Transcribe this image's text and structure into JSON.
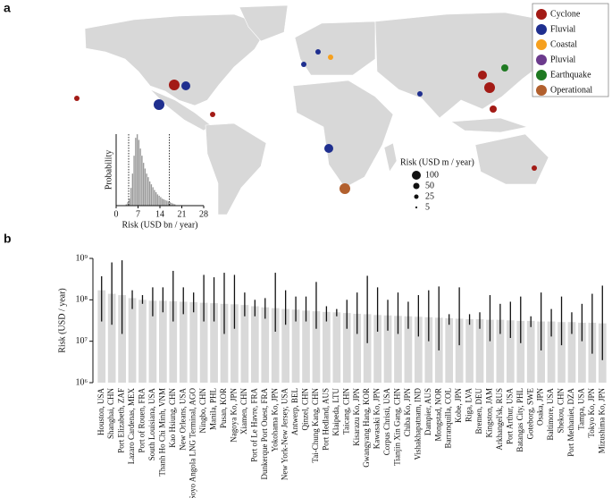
{
  "panels": {
    "a": "a",
    "b": "b"
  },
  "map": {
    "legend": [
      {
        "name": "Cyclone",
        "color": "#a31b16"
      },
      {
        "name": "Fluvial",
        "color": "#1f2f8f"
      },
      {
        "name": "Coastal",
        "color": "#f6a01e"
      },
      {
        "name": "Pluvial",
        "color": "#6b3a8c"
      },
      {
        "name": "Earthquake",
        "color": "#1f7a22"
      },
      {
        "name": "Operational",
        "color": "#b2602e"
      }
    ],
    "size_legend": {
      "title": "Risk (USD m / year)",
      "sizes": [
        100,
        50,
        25,
        5
      ]
    }
  },
  "chart_data": [
    {
      "type": "histogram",
      "xlabel": "Risk (USD bn / year)",
      "ylabel": "Probability",
      "bins": [
        3,
        3.5,
        4,
        4.5,
        5,
        5.5,
        6,
        6.5,
        7,
        7.5,
        8,
        8.5,
        9,
        9.5,
        10,
        10.5,
        11,
        11.5,
        12,
        12.5,
        13,
        13.5,
        14,
        14.5,
        15,
        15.5,
        16,
        16.5,
        17,
        17.5,
        18,
        18.5,
        19
      ],
      "values": [
        2,
        5,
        10,
        25,
        45,
        70,
        95,
        100,
        92,
        80,
        70,
        60,
        52,
        45,
        40,
        34,
        30,
        26,
        22,
        19,
        16,
        14,
        12,
        10,
        9,
        8,
        7,
        6,
        5,
        4,
        3,
        2
      ],
      "color": "#9a9a9a",
      "vlines": [
        4,
        17
      ],
      "xlim": [
        0,
        28
      ],
      "xticks": [
        0,
        7,
        14,
        21,
        28
      ],
      "ylim": [
        0,
        100
      ]
    },
    {
      "type": "bar",
      "ylabel": "Risk (USD / year)",
      "categories": [
        "Houston, USA",
        "Shanghai, CHN",
        "Port Elizabeth, ZAF",
        "Lazaro Cardenas, MEX",
        "Port of Rouen, FRA",
        "South Louisiana, USA",
        "Thanh Ho Chi Minh, VNM",
        "Kao Hsiung, CHN",
        "New Orleans, USA",
        "Soyo Angola LNG Terminal, AGO",
        "Ningbo, CHN",
        "Manila, PHL",
        "Pusan, KOR",
        "Nagoya Ko, JPN",
        "Xiamen, CHN",
        "Port of Le Havre, FRA",
        "Dunkerque Port Ouest, FRA",
        "Yokohama Ko, JPN",
        "New York-New Jersey, USA",
        "Antwerp, BEL",
        "Qinzel, CHN",
        "Tai-Chung Kang, CHN",
        "Port Hedland, AUS",
        "Klaipeda, LTU",
        "Taicang, CHN",
        "Kisarazu Ko, JPN",
        "Gwangyang Hang, KOR",
        "Kawasaki Ko, JPN",
        "Corpus Christi, USA",
        "Tianjin Xin Gang, CHN",
        "Chiba Ko, JPN",
        "Vishakhapatnam, IND",
        "Dampier, AUS",
        "Mongstad, NOR",
        "Barranquilla, COL",
        "Kobe, JPN",
        "Riga, LVA",
        "Bremen, DEU",
        "Kingston, JAM",
        "Arkhangel'sk, RUS",
        "Port Arthur, USA",
        "Batangas City, PHL",
        "Goteborg, SWE",
        "Osaka, JPN",
        "Baltimore, USA",
        "Shekou, CHN",
        "Port Methaniet, DZA",
        "Tampa, USA",
        "Tokyo Ko, JPN",
        "Mizushima Ko, JPN"
      ],
      "values": [
        170000000,
        140000000,
        130000000,
        110000000,
        100000000,
        95000000,
        95000000,
        92000000,
        90000000,
        88000000,
        85000000,
        83000000,
        80000000,
        78000000,
        75000000,
        70000000,
        66000000,
        63000000,
        60000000,
        58000000,
        55000000,
        53000000,
        51000000,
        50000000,
        48000000,
        46000000,
        45000000,
        43000000,
        42000000,
        41000000,
        40000000,
        39000000,
        38000000,
        37000000,
        36000000,
        35000000,
        34000000,
        34000000,
        33000000,
        33000000,
        32000000,
        31000000,
        31000000,
        30000000,
        30000000,
        29000000,
        29000000,
        28000000,
        28000000,
        27000000
      ],
      "error_low": [
        30000000,
        25000000,
        15000000,
        60000000,
        80000000,
        40000000,
        50000000,
        30000000,
        45000000,
        50000000,
        30000000,
        30000000,
        15000000,
        20000000,
        40000000,
        40000000,
        35000000,
        17000000,
        25000000,
        30000000,
        30000000,
        20000000,
        30000000,
        40000000,
        20000000,
        15000000,
        9000000,
        17000000,
        18000000,
        15000000,
        20000000,
        13000000,
        10000000,
        6000000,
        25000000,
        8000000,
        25000000,
        20000000,
        10000000,
        15000000,
        12000000,
        9000000,
        22000000,
        6000000,
        13000000,
        8000000,
        15000000,
        10000000,
        5000000,
        3500000
      ],
      "error_high": [
        370000000,
        800000000,
        900000000,
        170000000,
        130000000,
        200000000,
        200000000,
        500000000,
        200000000,
        150000000,
        400000000,
        350000000,
        450000000,
        400000000,
        150000000,
        100000000,
        110000000,
        450000000,
        170000000,
        120000000,
        120000000,
        270000000,
        70000000,
        60000000,
        100000000,
        150000000,
        380000000,
        200000000,
        100000000,
        150000000,
        90000000,
        130000000,
        170000000,
        210000000,
        45000000,
        200000000,
        45000000,
        50000000,
        130000000,
        80000000,
        90000000,
        120000000,
        40000000,
        150000000,
        60000000,
        120000000,
        50000000,
        80000000,
        140000000,
        220000000
      ],
      "color": "#d9d9d9",
      "error_color": "#111111",
      "log_scale": true,
      "ylim": [
        1000000,
        1000000000
      ],
      "yticks": [
        {
          "value": 1000000,
          "label": "10⁶"
        },
        {
          "value": 10000000,
          "label": "10⁷"
        },
        {
          "value": 100000000,
          "label": "10⁸"
        },
        {
          "value": 1000000000,
          "label": "10⁹"
        }
      ]
    }
  ]
}
